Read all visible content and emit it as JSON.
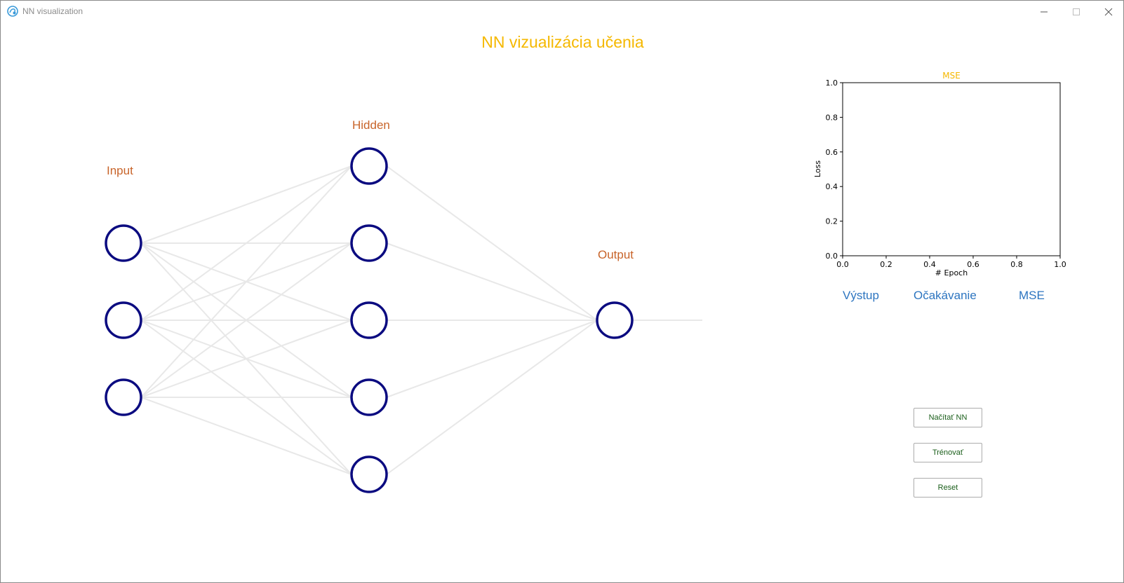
{
  "window": {
    "title": "NN visualization",
    "icon": "app-logo-icon"
  },
  "heading": "NN vizualizácia učenia",
  "layers": {
    "input_label": "Input",
    "hidden_label": "Hidden",
    "output_label": "Output",
    "input_count": 3,
    "hidden_count": 5,
    "output_count": 1
  },
  "results": {
    "col_output": "Výstup",
    "col_expected": "Očakávanie",
    "col_mse": "MSE"
  },
  "buttons": {
    "load": "Načítať NN",
    "train": "Trénovať",
    "reset": "Reset"
  },
  "chart_data": {
    "type": "line",
    "title": "MSE",
    "xlabel": "# Epoch",
    "ylabel": "Loss",
    "xlim": [
      0.0,
      1.0
    ],
    "ylim": [
      0.0,
      1.0
    ],
    "xticks": [
      "0.0",
      "0.2",
      "0.4",
      "0.6",
      "0.8",
      "1.0"
    ],
    "yticks": [
      "0.0",
      "0.2",
      "0.4",
      "0.6",
      "0.8",
      "1.0"
    ],
    "series": [],
    "grid": false
  },
  "colors": {
    "heading": "#f5b800",
    "layer_label": "#c8642a",
    "neuron_stroke": "#0b0b80",
    "connection": "#e8e8e8",
    "column_header": "#2d75c0",
    "button_text": "#1a5e1a",
    "chart_title": "#f5b800"
  }
}
